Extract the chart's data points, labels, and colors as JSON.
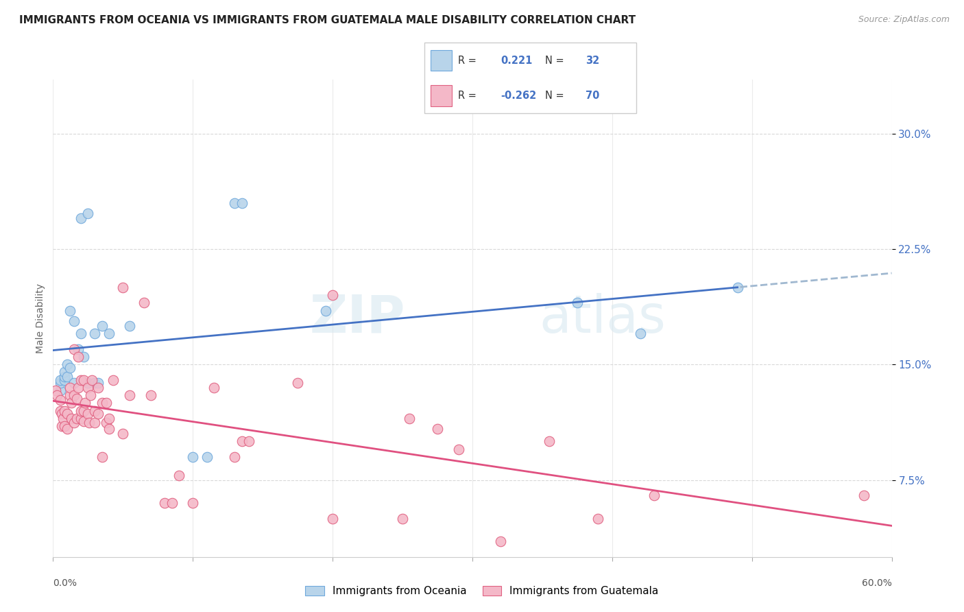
{
  "title": "IMMIGRANTS FROM OCEANIA VS IMMIGRANTS FROM GUATEMALA MALE DISABILITY CORRELATION CHART",
  "source": "Source: ZipAtlas.com",
  "ylabel": "Male Disability",
  "yticks": [
    "7.5%",
    "15.0%",
    "22.5%",
    "30.0%"
  ],
  "ytick_vals": [
    0.075,
    0.15,
    0.225,
    0.3
  ],
  "xlim": [
    0.0,
    0.6
  ],
  "ylim": [
    0.025,
    0.335
  ],
  "legend1_label": "Immigrants from Oceania",
  "legend2_label": "Immigrants from Guatemala",
  "R1": "0.221",
  "N1": "32",
  "R2": "-0.262",
  "N2": "70",
  "color_oceania_fill": "#b8d4ea",
  "color_oceania_edge": "#6fa8dc",
  "color_guatemala_fill": "#f4b8c8",
  "color_guatemala_edge": "#e06080",
  "color_line_oceania": "#4472c4",
  "color_line_guatemala": "#e05080",
  "color_line_dashed": "#a0b8d0",
  "color_ytick": "#4472c4",
  "color_grid": "#d8d8d8",
  "watermark": "ZIPatlas",
  "oceania_x": [
    0.005,
    0.005,
    0.005,
    0.008,
    0.008,
    0.008,
    0.01,
    0.01,
    0.012,
    0.012,
    0.015,
    0.015,
    0.018,
    0.02,
    0.02,
    0.022,
    0.025,
    0.025,
    0.03,
    0.03,
    0.032,
    0.035,
    0.04,
    0.055,
    0.1,
    0.11,
    0.13,
    0.135,
    0.195,
    0.375,
    0.42,
    0.49
  ],
  "oceania_y": [
    0.133,
    0.138,
    0.14,
    0.14,
    0.142,
    0.145,
    0.142,
    0.15,
    0.148,
    0.185,
    0.138,
    0.178,
    0.16,
    0.17,
    0.245,
    0.155,
    0.138,
    0.248,
    0.138,
    0.17,
    0.138,
    0.175,
    0.17,
    0.175,
    0.09,
    0.09,
    0.255,
    0.255,
    0.185,
    0.19,
    0.17,
    0.2
  ],
  "guatemala_x": [
    0.002,
    0.003,
    0.005,
    0.005,
    0.006,
    0.006,
    0.007,
    0.008,
    0.008,
    0.01,
    0.01,
    0.012,
    0.012,
    0.013,
    0.013,
    0.015,
    0.015,
    0.015,
    0.017,
    0.017,
    0.018,
    0.018,
    0.02,
    0.02,
    0.02,
    0.022,
    0.022,
    0.022,
    0.023,
    0.025,
    0.025,
    0.026,
    0.027,
    0.028,
    0.03,
    0.03,
    0.032,
    0.032,
    0.035,
    0.035,
    0.038,
    0.038,
    0.04,
    0.04,
    0.043,
    0.05,
    0.05,
    0.055,
    0.065,
    0.07,
    0.08,
    0.085,
    0.09,
    0.1,
    0.115,
    0.13,
    0.135,
    0.14,
    0.175,
    0.2,
    0.2,
    0.25,
    0.255,
    0.275,
    0.29,
    0.32,
    0.355,
    0.39,
    0.43,
    0.58
  ],
  "guatemala_y": [
    0.133,
    0.13,
    0.12,
    0.127,
    0.11,
    0.118,
    0.115,
    0.11,
    0.12,
    0.108,
    0.118,
    0.13,
    0.135,
    0.115,
    0.125,
    0.112,
    0.13,
    0.16,
    0.115,
    0.128,
    0.135,
    0.155,
    0.115,
    0.12,
    0.14,
    0.113,
    0.12,
    0.14,
    0.125,
    0.118,
    0.135,
    0.112,
    0.13,
    0.14,
    0.112,
    0.12,
    0.118,
    0.135,
    0.125,
    0.09,
    0.112,
    0.125,
    0.108,
    0.115,
    0.14,
    0.105,
    0.2,
    0.13,
    0.19,
    0.13,
    0.06,
    0.06,
    0.078,
    0.06,
    0.135,
    0.09,
    0.1,
    0.1,
    0.138,
    0.195,
    0.05,
    0.05,
    0.115,
    0.108,
    0.095,
    0.035,
    0.1,
    0.05,
    0.065,
    0.065
  ]
}
